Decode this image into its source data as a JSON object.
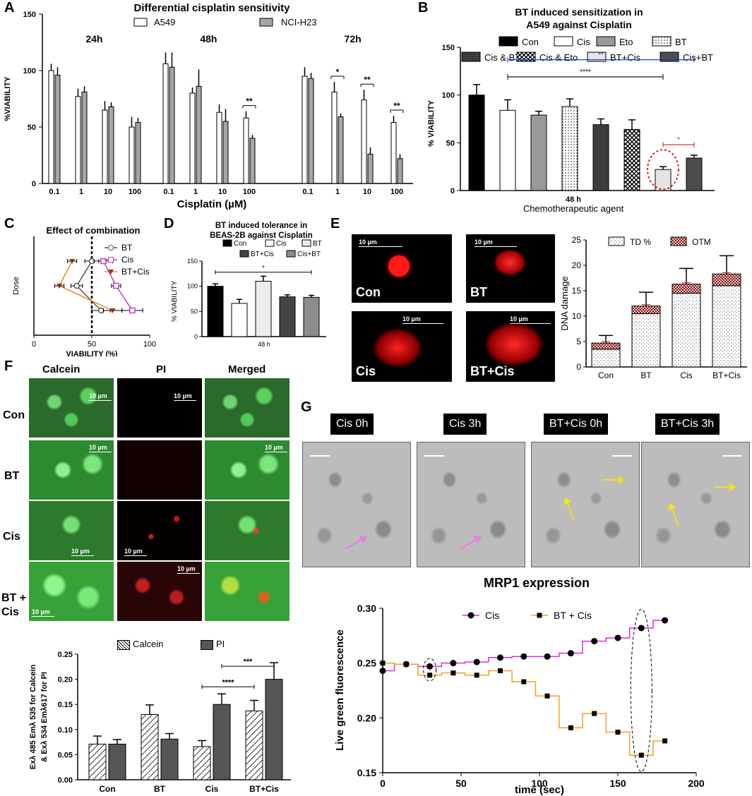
{
  "panel_labels": {
    "A": "A",
    "B": "B",
    "C": "C",
    "D": "D",
    "E": "E",
    "F": "F",
    "G": "G"
  },
  "chart_data": [
    {
      "id": "A",
      "type": "bar",
      "title": "Differential cisplatin sensitivity",
      "xlabel": "Cisplatin (µM)",
      "ylabel": "%VIABILITY",
      "ylim": [
        0,
        150
      ],
      "yticks": [
        0,
        50,
        100,
        150
      ],
      "groups": [
        "24h",
        "48h",
        "72h"
      ],
      "categories": [
        "0.1",
        "1",
        "10",
        "100"
      ],
      "series": [
        {
          "name": "A549",
          "color": "#ffffff",
          "values": [
            [
              100,
              77,
              65,
              50
            ],
            [
              106,
              80,
              63,
              58
            ],
            [
              95,
              81,
              74,
              54
            ]
          ],
          "errors": [
            [
              6,
              7,
              8,
              9
            ],
            [
              10,
              5,
              7,
              6
            ],
            [
              8,
              9,
              9,
              6
            ]
          ]
        },
        {
          "name": "NCI-H23",
          "color": "#a6a6a6",
          "values": [
            [
              96,
              81,
              68,
              54
            ],
            [
              103,
              86,
              55,
              40
            ],
            [
              93,
              59,
              26,
              22
            ]
          ],
          "errors": [
            [
              7,
              5,
              4,
              4
            ],
            [
              13,
              15,
              11,
              3
            ],
            [
              5,
              3,
              6,
              4
            ]
          ]
        }
      ],
      "annotations": [
        {
          "group": "48h",
          "category": "100",
          "text": "**"
        },
        {
          "group": "72h",
          "category": "1",
          "text": "*"
        },
        {
          "group": "72h",
          "category": "10",
          "text": "**"
        },
        {
          "group": "72h",
          "category": "100",
          "text": "**"
        }
      ]
    },
    {
      "id": "B",
      "type": "bar",
      "title": "BT induced sensitization in",
      "subtitle": "A549 against Cisplatin",
      "xlabel": "Chemotherapeutic agent",
      "xtick": "48 h",
      "ylabel": "% VIABILITY",
      "ylim": [
        0,
        150
      ],
      "yticks": [
        0,
        50,
        100,
        150
      ],
      "categories": [
        "Con",
        "Cis",
        "Eto",
        "BT",
        "Cis & BT",
        "Cis & Eto",
        "BT+Cis",
        "Cis+BT"
      ],
      "values": [
        100,
        84,
        79,
        88,
        69,
        64,
        22,
        34
      ],
      "errors": [
        11,
        11,
        4,
        8,
        6,
        10,
        3,
        3
      ],
      "fills": [
        "#000000",
        "#ffffff",
        "#9a9a9a",
        "dots",
        "#3c3c3c",
        "cross",
        "#e5e5e5",
        "#4d4d4d"
      ],
      "annotations": [
        {
          "from": 1,
          "to": 7,
          "y": 137,
          "text": "**",
          "color": "#1f3fbf"
        },
        {
          "from": 1,
          "to": 6,
          "y": 119,
          "text": "****",
          "color": "#000000"
        },
        {
          "from": 6,
          "to": 7,
          "y": 48,
          "text": "*",
          "color": "#d61f1f"
        }
      ]
    },
    {
      "id": "C",
      "type": "line",
      "title": "Effect of combination",
      "xlabel": "VIABILITY  (%)",
      "ylabel": "Dose",
      "xlim": [
        0,
        100
      ],
      "xticks": [
        0,
        50,
        100
      ],
      "series": [
        {
          "name": "BT",
          "color": "#555555",
          "marker": "circle-open",
          "x": [
            50,
            37,
            58
          ],
          "y": [
            3,
            2,
            1
          ],
          "xerr": [
            6,
            5,
            8
          ]
        },
        {
          "name": "Cis",
          "color": "#c040c0",
          "marker": "square-open",
          "x": [
            60,
            71,
            85
          ],
          "y": [
            3,
            2,
            1
          ],
          "xerr": [
            8,
            4,
            9
          ]
        },
        {
          "name": "BT+Cis",
          "color": "#f08a1c",
          "marker": "triangle-down",
          "x": [
            33,
            22,
            68
          ],
          "y": [
            3,
            2,
            1
          ],
          "xerr": [
            4,
            4,
            8
          ]
        }
      ],
      "reference_x": 50
    },
    {
      "id": "D",
      "type": "bar",
      "title": "BT induced tolerance in",
      "subtitle": "BEAS-2B against Cisplatin",
      "xtick": "48 h",
      "ylabel": "% VIABILITY",
      "ylim": [
        0,
        150
      ],
      "yticks": [
        0,
        50,
        100,
        150
      ],
      "categories": [
        "Con",
        "Cis",
        "BT",
        "BT+Cis",
        "Cis+BT"
      ],
      "values": [
        100,
        66,
        110,
        79,
        78
      ],
      "errors": [
        5,
        8,
        10,
        4,
        4
      ],
      "fills": [
        "#000000",
        "#ffffff",
        "#ececec",
        "#444444",
        "#8c8c8c"
      ],
      "annotations": [
        {
          "from": 0,
          "to": 4,
          "y": 128,
          "text": "*"
        }
      ]
    },
    {
      "id": "E",
      "type": "bar",
      "ylabel": "DNA damage",
      "ylim": [
        0,
        25
      ],
      "yticks": [
        0,
        5,
        10,
        15,
        20,
        25
      ],
      "categories": [
        "Con",
        "BT",
        "Cis",
        "BT+Cis"
      ],
      "series": [
        {
          "name": "TD %",
          "values": [
            3.5,
            10.5,
            14.5,
            16
          ],
          "errors": [
            0,
            0,
            0,
            0
          ]
        },
        {
          "name": "OTM",
          "values": [
            1.2,
            1.5,
            1.8,
            2.3
          ],
          "errors": [
            1.5,
            2.7,
            3.1,
            3.6
          ]
        }
      ]
    },
    {
      "id": "F",
      "type": "bar",
      "ylabel": "Exλ 485 Emλ 535 for Calcein & Exλ 534 Emλ617 for PI",
      "ylim": [
        0,
        0.25
      ],
      "yticks": [
        "0.00",
        "0.05",
        "0.10",
        "0.15",
        "0.20",
        "0.25"
      ],
      "categories": [
        "Con",
        "BT",
        "Cis",
        "BT+Cis"
      ],
      "series": [
        {
          "name": "Calcein",
          "values": [
            0.071,
            0.13,
            0.066,
            0.137
          ],
          "errors": [
            0.016,
            0.019,
            0.012,
            0.021
          ]
        },
        {
          "name": "PI",
          "values": [
            0.071,
            0.081,
            0.15,
            0.2
          ],
          "errors": [
            0.009,
            0.011,
            0.021,
            0.033
          ]
        }
      ],
      "annotations": [
        {
          "from": "Cis-Calcein",
          "to": "BT+Cis-Calcein",
          "y": 0.185,
          "text": "****"
        },
        {
          "from": "Cis-PI",
          "to": "BT+Cis-PI",
          "y": 0.226,
          "text": "***"
        }
      ]
    },
    {
      "id": "G",
      "type": "line",
      "title": "MRP1 expression",
      "xlabel": "time (sec)",
      "ylabel": "Live green fluorescence",
      "xlim": [
        0,
        200
      ],
      "ylim": [
        0.15,
        0.3
      ],
      "xticks": [
        0,
        50,
        100,
        150,
        200
      ],
      "yticks": [
        "0.15",
        "0.20",
        "0.25",
        "0.30"
      ],
      "series": [
        {
          "name": "Cis",
          "color": "#e028e0",
          "marker": "circle",
          "x": [
            0,
            15,
            30,
            45,
            60,
            75,
            90,
            105,
            120,
            135,
            150,
            165,
            180
          ],
          "y": [
            0.243,
            0.249,
            0.247,
            0.25,
            0.251,
            0.255,
            0.256,
            0.256,
            0.259,
            0.27,
            0.273,
            0.282,
            0.289
          ]
        },
        {
          "name": "BT + Cis",
          "color": "#f0a020",
          "marker": "square",
          "x": [
            0,
            15,
            30,
            45,
            60,
            75,
            90,
            105,
            120,
            135,
            150,
            165,
            180
          ],
          "y": [
            0.25,
            0.249,
            0.239,
            0.241,
            0.239,
            0.243,
            0.233,
            0.22,
            0.191,
            0.204,
            0.187,
            0.166,
            0.179
          ]
        }
      ],
      "highlights": [
        {
          "x": 30
        },
        {
          "x": 165
        }
      ]
    }
  ],
  "panel_E_images": {
    "tiles": [
      "Con",
      "BT",
      "Cis",
      "BT+Cis"
    ],
    "scale_label": "10 µm"
  },
  "panel_F_images": {
    "columns": [
      "Calcein",
      "PI",
      "Merged"
    ],
    "rows": [
      "Con",
      "BT",
      "Cis",
      "BT + Cis"
    ],
    "scale_label": "10 µm"
  },
  "panel_G_images": {
    "titles": [
      "Cis 0h",
      "Cis 3h",
      "BT+Cis 0h",
      "BT+Cis 3h"
    ]
  }
}
